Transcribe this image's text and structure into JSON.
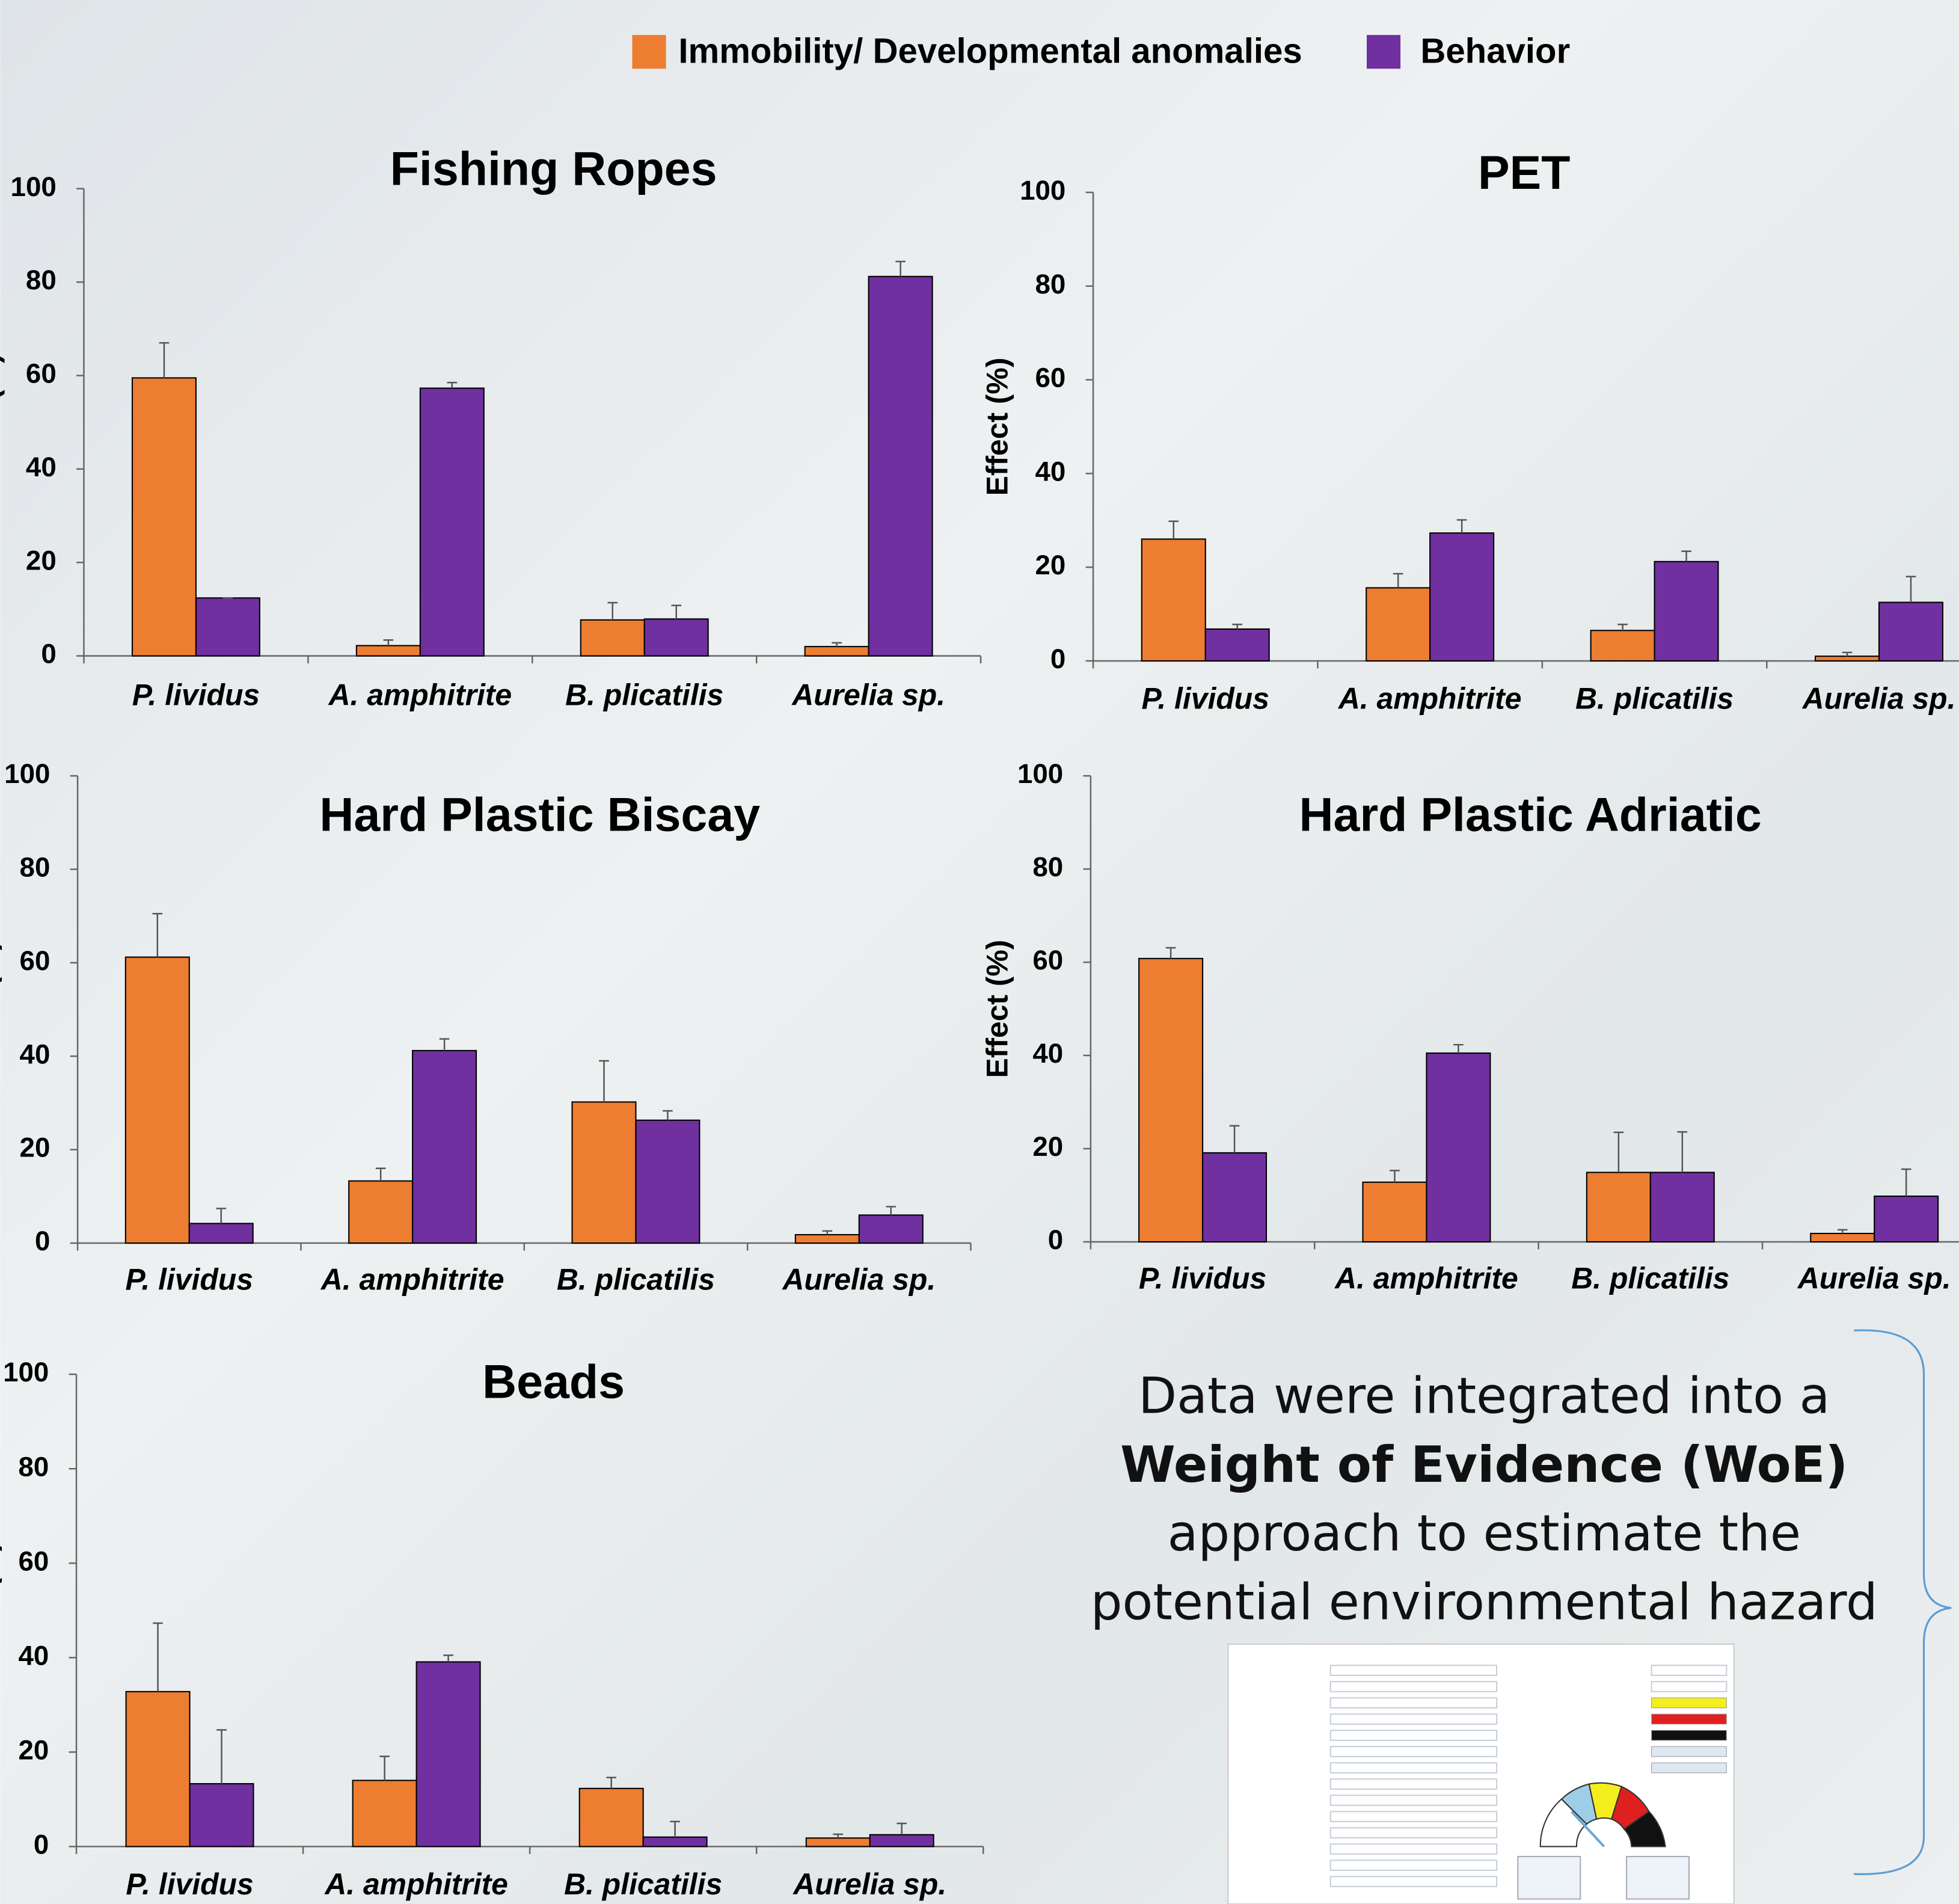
{
  "chart_data": [
    {
      "type": "bar",
      "title": "Fishing Ropes",
      "ylabel": "Effect (%)",
      "categories": [
        "P. lividus",
        "A. amphitrite",
        "B. plicatilis",
        "Aurelia sp."
      ],
      "series": [
        {
          "name": "Immobility/ Developmental anomalies",
          "color": "#ed7d31",
          "values": [
            59.5,
            2.2,
            7.7,
            2.0
          ],
          "errors": [
            7.5,
            1.2,
            3.7,
            0.8
          ]
        },
        {
          "name": "Behavior",
          "color": "#7030a0",
          "values": [
            12.4,
            57.3,
            7.9,
            81.2
          ],
          "errors": [
            0,
            1.2,
            2.9,
            3.2
          ]
        }
      ],
      "ylim": [
        0,
        100
      ],
      "yticks": [
        0,
        20,
        40,
        60,
        80,
        100
      ]
    },
    {
      "type": "bar",
      "title": "PET",
      "ylabel": "Effect (%)",
      "categories": [
        "P. lividus",
        "A. amphitrite",
        "B. plicatilis",
        "Aurelia sp."
      ],
      "series": [
        {
          "name": "Immobility/ Developmental anomalies",
          "color": "#ed7d31",
          "values": [
            26.0,
            15.6,
            6.5,
            1.0
          ],
          "errors": [
            3.8,
            3.0,
            1.3,
            0.8
          ]
        },
        {
          "name": "Behavior",
          "color": "#7030a0",
          "values": [
            6.8,
            27.3,
            21.2,
            12.5
          ],
          "errors": [
            1.0,
            2.8,
            2.2,
            5.5
          ]
        }
      ],
      "ylim": [
        0,
        100
      ],
      "yticks": [
        0,
        20,
        40,
        60,
        80,
        100
      ]
    },
    {
      "type": "bar",
      "title": "Hard Plastic Biscay",
      "ylabel": "Effect (%)",
      "categories": [
        "P. lividus",
        "A. amphitrite",
        "B. plicatilis",
        "Aurelia sp."
      ],
      "series": [
        {
          "name": "Immobility/ Developmental anomalies",
          "color": "#ed7d31",
          "values": [
            61.2,
            13.3,
            30.2,
            1.8
          ],
          "errors": [
            9.3,
            2.7,
            8.8,
            0.8
          ]
        },
        {
          "name": "Behavior",
          "color": "#7030a0",
          "values": [
            4.2,
            41.2,
            26.3,
            6.0
          ],
          "errors": [
            3.2,
            2.5,
            2.0,
            1.8
          ]
        }
      ],
      "ylim": [
        0,
        100
      ],
      "yticks": [
        0,
        20,
        40,
        60,
        80,
        100
      ]
    },
    {
      "type": "bar",
      "title": "Hard Plastic Adriatic",
      "ylabel": "Effect (%)",
      "categories": [
        "P. lividus",
        "A. amphitrite",
        "B. plicatilis",
        "Aurelia sp."
      ],
      "series": [
        {
          "name": "Immobility/ Developmental anomalies",
          "color": "#ed7d31",
          "values": [
            60.8,
            12.8,
            14.9,
            1.8
          ],
          "errors": [
            2.3,
            2.5,
            8.6,
            0.8
          ]
        },
        {
          "name": "Behavior",
          "color": "#7030a0",
          "values": [
            19.1,
            40.5,
            14.9,
            9.8
          ],
          "errors": [
            5.8,
            1.8,
            8.7,
            5.8
          ]
        }
      ],
      "ylim": [
        0,
        100
      ],
      "yticks": [
        0,
        20,
        40,
        60,
        80,
        100
      ]
    },
    {
      "type": "bar",
      "title": "Beads",
      "ylabel": "Effect (%)",
      "categories": [
        "P. lividus",
        "A. amphitrite",
        "B. plicatilis",
        "Aurelia sp."
      ],
      "series": [
        {
          "name": "Immobility/ Developmental anomalies",
          "color": "#ed7d31",
          "values": [
            32.8,
            14.0,
            12.3,
            1.8
          ],
          "errors": [
            14.5,
            5.1,
            2.3,
            0.8
          ]
        },
        {
          "name": "Behavior",
          "color": "#7030a0",
          "values": [
            13.3,
            39.1,
            2.0,
            2.5
          ],
          "errors": [
            11.4,
            1.4,
            3.3,
            2.4
          ]
        }
      ],
      "ylim": [
        0,
        100
      ],
      "yticks": [
        0,
        20,
        40,
        60,
        80,
        100
      ]
    }
  ],
  "text_block": {
    "lines": [
      "Data were integrated into a",
      "Weight of Evidence (WoE)",
      "approach to estimate the",
      "potential environmental hazard"
    ]
  }
}
